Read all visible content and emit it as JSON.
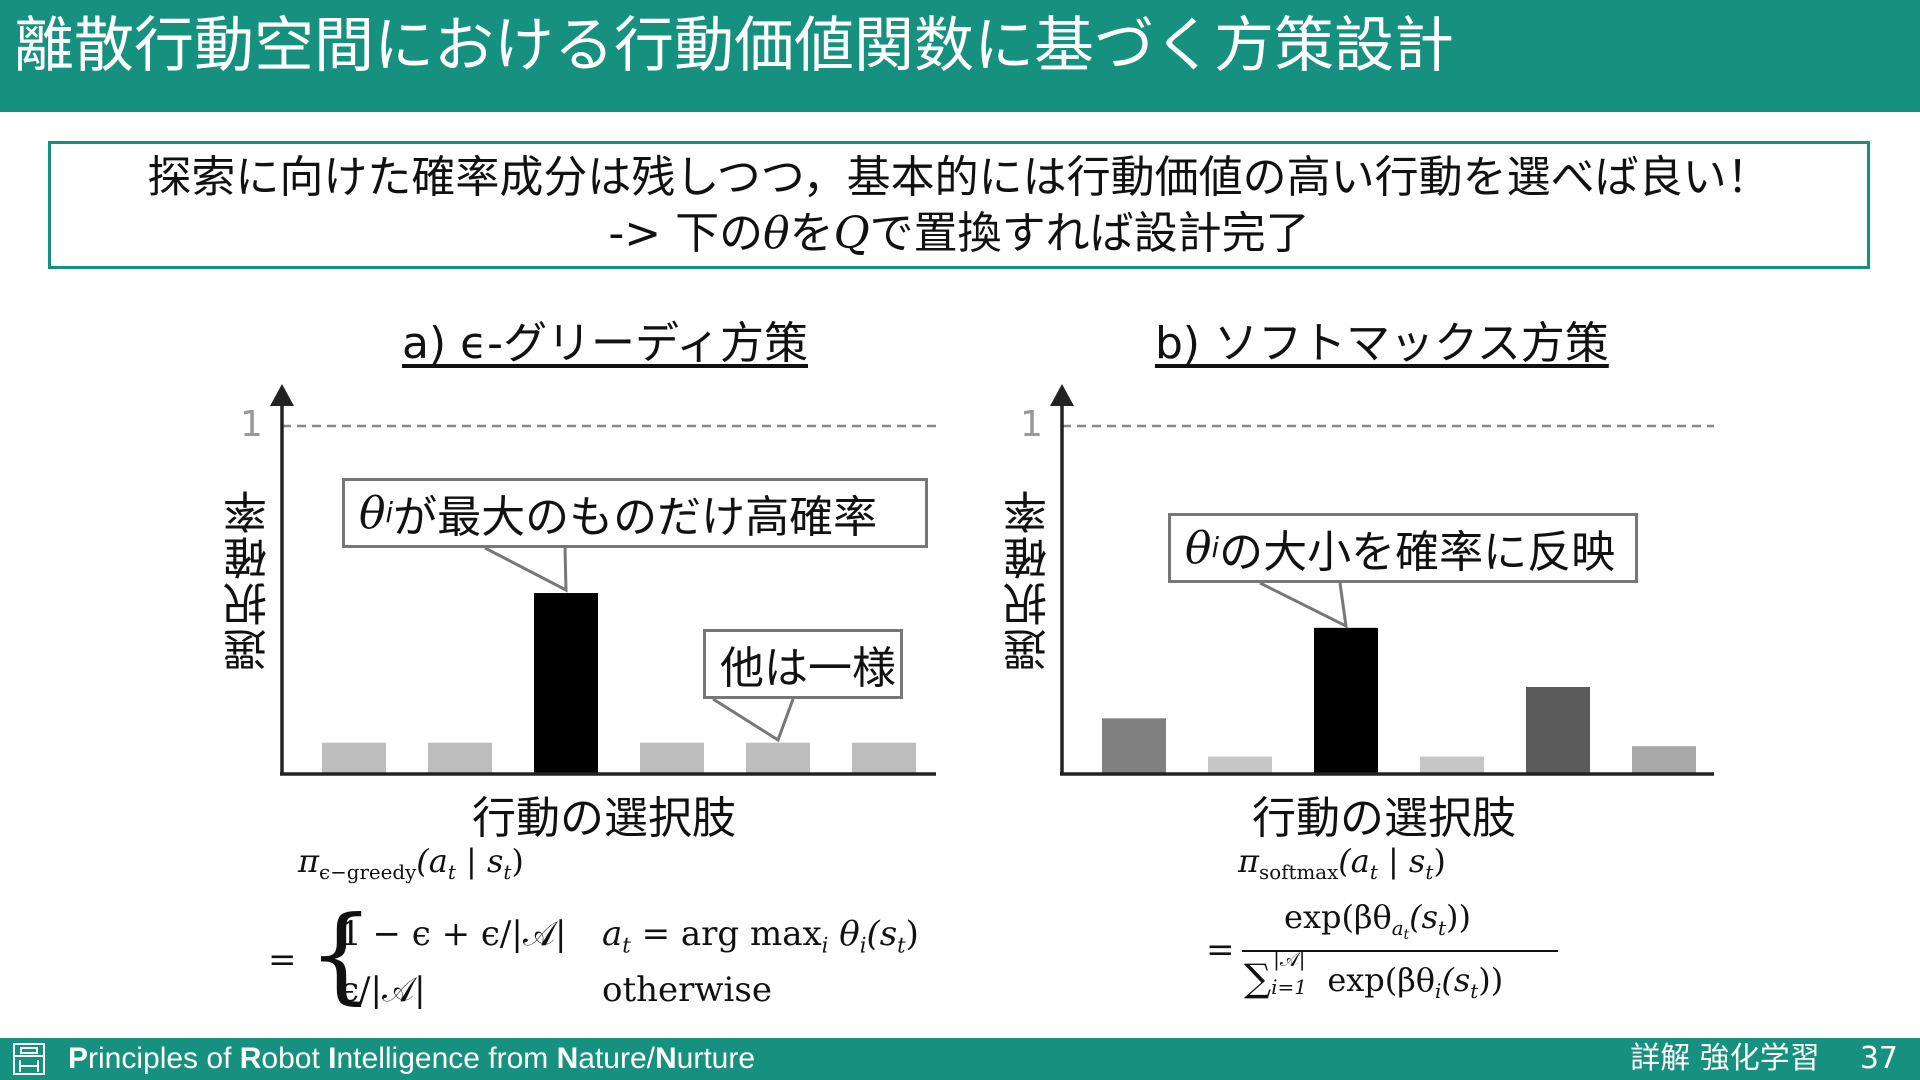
{
  "title": "離散行動空間における行動価値関数に基づく方策設計",
  "summary": {
    "line1": "探索に向けた確率成分は残しつつ，基本的には行動価値の高い行動を選べば良い！",
    "line2_prefix": "-> 下の",
    "line2_theta": "θ",
    "line2_mid": "を",
    "line2_q": "Q",
    "line2_suffix": "で置換すれば設計完了"
  },
  "panels": {
    "greedy": {
      "title": "a) ϵ-グリーディ方策",
      "ylabel": "選択確率",
      "xlabel": "行動の選択肢",
      "ytick": "1",
      "callout_main_theta": "θ",
      "callout_main_sub": "i",
      "callout_main_text": "が最大のものだけ高確率",
      "callout_other": "他は一様",
      "formula_lhs_pi": "π",
      "formula_lhs_sub": "ϵ−greedy",
      "formula_lhs_args": "(a",
      "formula_lhs_args_sub": "t",
      "formula_lhs_args2": " | s",
      "formula_lhs_args2_sub": "t",
      "formula_lhs_close": ")",
      "formula_eq": "=",
      "case1_expr": "1 − ϵ + ϵ/|𝒜|",
      "case1_cond_a": "a",
      "case1_cond_t": "t",
      "case1_cond_rest": " = arg max",
      "case1_cond_i": "i",
      "case1_cond_theta": " θ",
      "case1_cond_ti": "i",
      "case1_cond_s": "(s",
      "case1_cond_st": "t",
      "case1_cond_close": ")",
      "case2_expr": "ϵ/|𝒜|",
      "case2_cond": "otherwise"
    },
    "softmax": {
      "title": "b) ソフトマックス方策",
      "ylabel": "選択確率",
      "xlabel": "行動の選択肢",
      "ytick": "1",
      "callout_theta": "θ",
      "callout_sub": "i",
      "callout_text": "の大小を確率に反映",
      "formula_lhs_pi": "π",
      "formula_lhs_sub": "softmax",
      "formula_lhs_args": "(a",
      "formula_lhs_args_sub": "t",
      "formula_lhs_args2": " | s",
      "formula_lhs_args2_sub": "t",
      "formula_lhs_close": ")",
      "formula_eq": "=",
      "num_exp": "exp(βθ",
      "num_sub": "a",
      "num_subsub": "t",
      "num_rest": "(s",
      "num_rest_sub": "t",
      "num_close": "))",
      "den_sum": "∑",
      "den_upper": "|𝒜|",
      "den_lower": "i=1",
      "den_exp": " exp(βθ",
      "den_sub": "i",
      "den_rest": "(s",
      "den_rest_sub": "t",
      "den_close": "))"
    }
  },
  "chart_data": [
    {
      "type": "bar",
      "title": "a) ϵ-グリーディ方策",
      "xlabel": "行動の選択肢",
      "ylabel": "選択確率",
      "ylim": [
        0,
        1
      ],
      "yticks": [
        1
      ],
      "values": [
        0.09,
        0.09,
        0.52,
        0.09,
        0.09,
        0.09
      ],
      "colors": [
        "#bdbdbd",
        "#bdbdbd",
        "#000000",
        "#bdbdbd",
        "#bdbdbd",
        "#bdbdbd"
      ]
    },
    {
      "type": "bar",
      "title": "b) ソフトマックス方策",
      "xlabel": "行動の選択肢",
      "ylabel": "選択確率",
      "ylim": [
        0,
        1
      ],
      "yticks": [
        1
      ],
      "values": [
        0.16,
        0.05,
        0.42,
        0.05,
        0.25,
        0.08
      ],
      "colors": [
        "#808080",
        "#c6c6c6",
        "#000000",
        "#c6c6c6",
        "#5a5a5a",
        "#a8a8a8"
      ]
    }
  ],
  "footer": {
    "p1": "P",
    "t1": "rinciples of ",
    "p2": "R",
    "t2": "obot ",
    "p3": "I",
    "t3": "ntelligence from ",
    "p4": "N",
    "t4": "ature/",
    "p5": "N",
    "t5": "urture",
    "book": "詳解 強化学習",
    "page": "37"
  },
  "colors": {
    "accent": "#17917f",
    "callout_border": "#777777",
    "axis": "#222222",
    "dashed": "#888888"
  }
}
